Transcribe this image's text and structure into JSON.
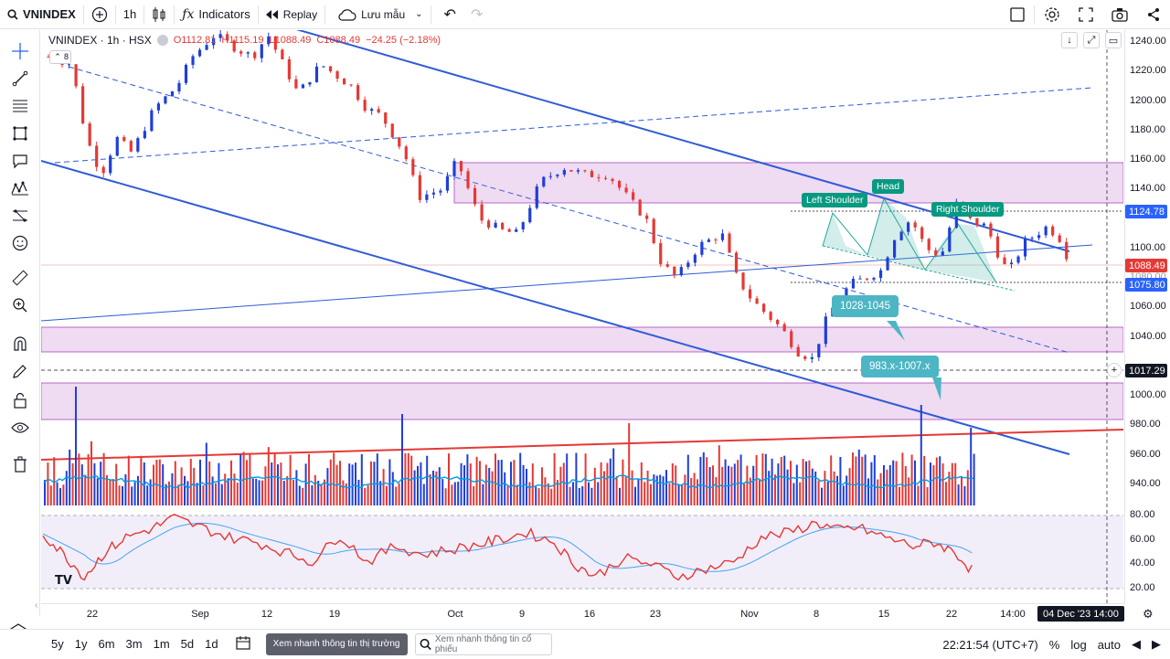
{
  "toolbar": {
    "symbol": "VNINDEX",
    "interval": "1h",
    "indicators_label": "Indicators",
    "replay_label": "Replay",
    "save_label": "Lưu mẫu"
  },
  "legend": {
    "title": "VNINDEX · 1h · HSX",
    "open": "O1112.81",
    "high": "H1115.19",
    "low": "L1088.49",
    "close": "C1088.49",
    "change": "−24.25 (−2.18%)",
    "hidden_count": "8"
  },
  "price_axis": {
    "labels": [
      "1240.00",
      "1220.00",
      "1200.00",
      "1180.00",
      "1160.00",
      "1140.00",
      "1100.00",
      "1060.00",
      "1040.00",
      "1000.00",
      "980.00",
      "960.00",
      "940.00"
    ],
    "badges": [
      {
        "text": "1124.78",
        "color": "#2962ff"
      },
      {
        "text": "1088.49",
        "color": "#e53935"
      },
      {
        "text": "1075.80",
        "color": "#2962ff"
      },
      {
        "text": "1017.29",
        "color": "#131722"
      }
    ],
    "faint_label": "1080.00",
    "rsi_labels": [
      "80.00",
      "60.00",
      "40.00",
      "20.00"
    ]
  },
  "time_axis": {
    "labels": [
      "22",
      "Sep",
      "12",
      "19",
      "Oct",
      "9",
      "16",
      "23",
      "Nov",
      "8",
      "15",
      "22",
      "14:00"
    ],
    "crosshair_time": "04 Dec '23   14:00"
  },
  "annotations": {
    "left_shoulder": "Left Shoulder",
    "head": "Head",
    "right_shoulder": "Right Shoulder",
    "target1": "1028-1045",
    "target2": "983.x-1007.x"
  },
  "bottombar": {
    "ranges": [
      "5y",
      "1y",
      "6m",
      "3m",
      "1m",
      "5d",
      "1d"
    ],
    "quick_view": "Xem nhanh thông tin thị trường",
    "search_placeholder": "Xem nhanh thông tin cổ phiếu",
    "clock": "22:21:54 (UTC+7)",
    "percent": "%",
    "log": "log",
    "auto": "auto"
  },
  "colors": {
    "up": "#1e3fd8",
    "down": "#e53935",
    "zone": "#e1bee7",
    "trend": "#2f5bd6",
    "rsi": "#e53935",
    "rsi_ma": "#42a5f5"
  },
  "chart_data": {
    "type": "candlestick",
    "symbol": "VNINDEX",
    "interval": "1h",
    "ylim": [
      920,
      1250
    ],
    "price_path": [
      [
        0,
        1230
      ],
      [
        3,
        1225
      ],
      [
        5,
        1175
      ],
      [
        7,
        1150
      ],
      [
        9,
        1175
      ],
      [
        11,
        1165
      ],
      [
        14,
        1195
      ],
      [
        17,
        1210
      ],
      [
        19,
        1230
      ],
      [
        22,
        1245
      ],
      [
        25,
        1235
      ],
      [
        27,
        1230
      ],
      [
        29,
        1245
      ],
      [
        31,
        1225
      ],
      [
        33,
        1205
      ],
      [
        36,
        1225
      ],
      [
        40,
        1210
      ],
      [
        42,
        1195
      ],
      [
        44,
        1190
      ],
      [
        47,
        1165
      ],
      [
        49,
        1135
      ],
      [
        52,
        1140
      ],
      [
        54,
        1160
      ],
      [
        57,
        1120
      ],
      [
        60,
        1112
      ],
      [
        62,
        1110
      ],
      [
        65,
        1145
      ],
      [
        68,
        1155
      ],
      [
        71,
        1150
      ],
      [
        74,
        1150
      ],
      [
        77,
        1132
      ],
      [
        79,
        1120
      ],
      [
        81,
        1090
      ],
      [
        83,
        1080
      ],
      [
        86,
        1102
      ],
      [
        89,
        1110
      ],
      [
        91,
        1080
      ],
      [
        93,
        1065
      ],
      [
        95,
        1055
      ],
      [
        97,
        1045
      ],
      [
        99,
        1030
      ],
      [
        101,
        1025
      ],
      [
        103,
        1055
      ],
      [
        106,
        1076
      ],
      [
        108,
        1080
      ],
      [
        110,
        1085
      ],
      [
        112,
        1110
      ],
      [
        114,
        1120
      ],
      [
        116,
        1100
      ],
      [
        118,
        1095
      ],
      [
        120,
        1130
      ],
      [
        122,
        1118
      ],
      [
        124,
        1115
      ],
      [
        126,
        1090
      ],
      [
        127,
        1085
      ],
      [
        129,
        1104
      ],
      [
        132,
        1115
      ],
      [
        134,
        1105
      ],
      [
        135,
        1088
      ]
    ],
    "volume_ma_level": 0.32,
    "rsi": {
      "levels": [
        80,
        20
      ],
      "points": [
        [
          0,
          65
        ],
        [
          3,
          48
        ],
        [
          6,
          30
        ],
        [
          9,
          50
        ],
        [
          12,
          62
        ],
        [
          16,
          70
        ],
        [
          19,
          78
        ],
        [
          23,
          70
        ],
        [
          27,
          62
        ],
        [
          31,
          58
        ],
        [
          35,
          50
        ],
        [
          39,
          42
        ],
        [
          43,
          64
        ],
        [
          47,
          42
        ],
        [
          51,
          55
        ],
        [
          55,
          48
        ],
        [
          59,
          52
        ],
        [
          63,
          56
        ],
        [
          66,
          60
        ],
        [
          70,
          66
        ],
        [
          74,
          58
        ],
        [
          77,
          40
        ],
        [
          80,
          30
        ],
        [
          84,
          45
        ],
        [
          88,
          40
        ],
        [
          92,
          30
        ],
        [
          96,
          36
        ],
        [
          100,
          42
        ],
        [
          104,
          62
        ],
        [
          108,
          66
        ],
        [
          112,
          74
        ],
        [
          115,
          68
        ],
        [
          118,
          70
        ],
        [
          122,
          62
        ],
        [
          126,
          55
        ],
        [
          129,
          58
        ],
        [
          132,
          50
        ],
        [
          135,
          32
        ]
      ]
    }
  }
}
